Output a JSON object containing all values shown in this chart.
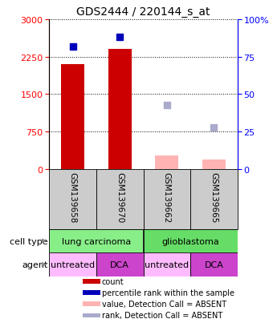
{
  "title": "GDS2444 / 220144_s_at",
  "samples": [
    "GSM139658",
    "GSM139670",
    "GSM139662",
    "GSM139665"
  ],
  "count_values": [
    2100,
    2400,
    null,
    null
  ],
  "count_absent_values": [
    null,
    null,
    270,
    190
  ],
  "percentile_values": [
    82,
    88,
    null,
    null
  ],
  "percentile_absent_values": [
    null,
    null,
    43,
    28
  ],
  "ylim_left": [
    0,
    3000
  ],
  "ylim_right": [
    0,
    100
  ],
  "yticks_left": [
    0,
    750,
    1500,
    2250,
    3000
  ],
  "yticks_right": [
    0,
    25,
    50,
    75,
    100
  ],
  "bar_color_present": "#cc0000",
  "bar_color_absent": "#ffb3b3",
  "marker_color_present": "#0000bb",
  "marker_color_absent": "#aaaacc",
  "cell_types": [
    {
      "label": "lung carcinoma",
      "start": 0,
      "end": 2,
      "color": "#88ee88"
    },
    {
      "label": "glioblastoma",
      "start": 2,
      "end": 4,
      "color": "#66dd66"
    }
  ],
  "agents": [
    {
      "label": "untreated",
      "start": 0,
      "end": 1,
      "color": "#ffbbff"
    },
    {
      "label": "DCA",
      "start": 1,
      "end": 2,
      "color": "#cc44cc"
    },
    {
      "label": "untreated",
      "start": 2,
      "end": 3,
      "color": "#ffbbff"
    },
    {
      "label": "DCA",
      "start": 3,
      "end": 4,
      "color": "#cc44cc"
    }
  ],
  "legend_items": [
    {
      "label": "count",
      "color": "#cc0000"
    },
    {
      "label": "percentile rank within the sample",
      "color": "#0000bb"
    },
    {
      "label": "value, Detection Call = ABSENT",
      "color": "#ffb3b3"
    },
    {
      "label": "rank, Detection Call = ABSENT",
      "color": "#aaaacc"
    }
  ],
  "bar_width": 0.5,
  "sample_box_color": "#cccccc",
  "grid_linestyle": "dotted",
  "grid_color": "black"
}
